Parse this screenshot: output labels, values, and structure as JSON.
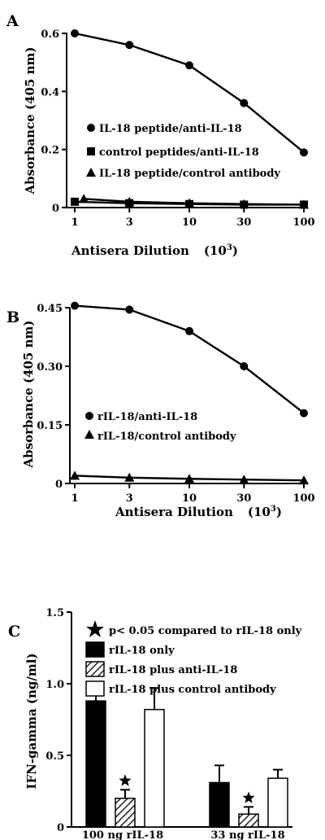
{
  "chart_data": [
    {
      "type": "line",
      "panel": "A",
      "xlabel": "Antisera Dilution",
      "xunit": "(10",
      "xunit_exp": "3",
      "xunit_close": ")",
      "ylabel": "Absorbance (405 nm)",
      "x_scale": "log",
      "x_ticks": [
        1,
        3,
        10,
        30,
        100
      ],
      "x_tick_labels": [
        "1",
        "3",
        "10",
        "30",
        "100"
      ],
      "y_ticks": [
        0,
        0.2,
        0.4,
        0.6
      ],
      "y_tick_labels": [
        "0",
        "0.2",
        "0.4",
        "0.6"
      ],
      "ylim": [
        0,
        0.6
      ],
      "legend_position": "center-left",
      "series": [
        {
          "name": "IL-18 peptide/anti-IL-18",
          "marker": "circle",
          "x": [
            1,
            3,
            10,
            30,
            100
          ],
          "y": [
            0.6,
            0.56,
            0.49,
            0.36,
            0.19
          ]
        },
        {
          "name": "control peptides/anti-IL-18",
          "marker": "square",
          "x": [
            1,
            3,
            10,
            30,
            100
          ],
          "y": [
            0.02,
            0.015,
            0.012,
            0.01,
            0.01
          ]
        },
        {
          "name": "IL-18 peptide/control antibody",
          "marker": "triangle",
          "x": [
            1.2,
            3,
            10,
            30,
            100
          ],
          "y": [
            0.03,
            0.02,
            0.015,
            0.012,
            0.01
          ]
        }
      ]
    },
    {
      "type": "line",
      "panel": "B",
      "xlabel": "Antisera Dilution",
      "xunit": "(10",
      "xunit_exp": "3",
      "xunit_close": ")",
      "ylabel": "Absorbance (405 nm)",
      "x_scale": "log",
      "x_ticks": [
        1,
        3,
        10,
        30,
        100
      ],
      "x_tick_labels": [
        "1",
        "3",
        "10",
        "30",
        "100"
      ],
      "y_ticks": [
        0,
        0.15,
        0.3,
        0.45
      ],
      "y_tick_labels": [
        "0",
        "0.15",
        "0.30",
        "0.45"
      ],
      "ylim": [
        0,
        0.45
      ],
      "legend_position": "center-left",
      "series": [
        {
          "name": "rIL-18/anti-IL-18",
          "marker": "circle",
          "x": [
            1,
            3,
            10,
            30,
            100
          ],
          "y": [
            0.455,
            0.445,
            0.39,
            0.3,
            0.18
          ]
        },
        {
          "name": "rIL-18/control antibody",
          "marker": "triangle",
          "x": [
            1,
            3,
            10,
            30,
            100
          ],
          "y": [
            0.02,
            0.015,
            0.012,
            0.01,
            0.008
          ]
        }
      ]
    },
    {
      "type": "bar",
      "panel": "C",
      "ylabel": "IFN-gamma (ng/ml)",
      "categories": [
        "100 ng rIL-18",
        "33 ng rIL-18"
      ],
      "y_ticks": [
        0,
        0.5,
        1.0,
        1.5
      ],
      "y_tick_labels": [
        "0",
        "0.5",
        "1.0",
        "1.5"
      ],
      "ylim": [
        0,
        1.5
      ],
      "legend_position": "top",
      "significance_note": "p< 0.05 compared to rIL-18 only",
      "series": [
        {
          "name": "rIL-18 only",
          "fill": "solid",
          "values": [
            0.88,
            0.31
          ],
          "errors": [
            0.07,
            0.12
          ]
        },
        {
          "name": "rIL-18 plus anti-IL-18",
          "fill": "hatched",
          "values": [
            0.2,
            0.09
          ],
          "errors": [
            0.06,
            0.05
          ],
          "significant": [
            true,
            true
          ]
        },
        {
          "name": "rIL-18 plus control antibody",
          "fill": "open",
          "values": [
            0.82,
            0.34
          ],
          "errors": [
            0.15,
            0.06
          ]
        }
      ]
    }
  ],
  "panels": {
    "a_label": "A",
    "b_label": "B",
    "c_label": "C"
  },
  "colors": {
    "ink": "#000000",
    "background": "#ffffff"
  }
}
